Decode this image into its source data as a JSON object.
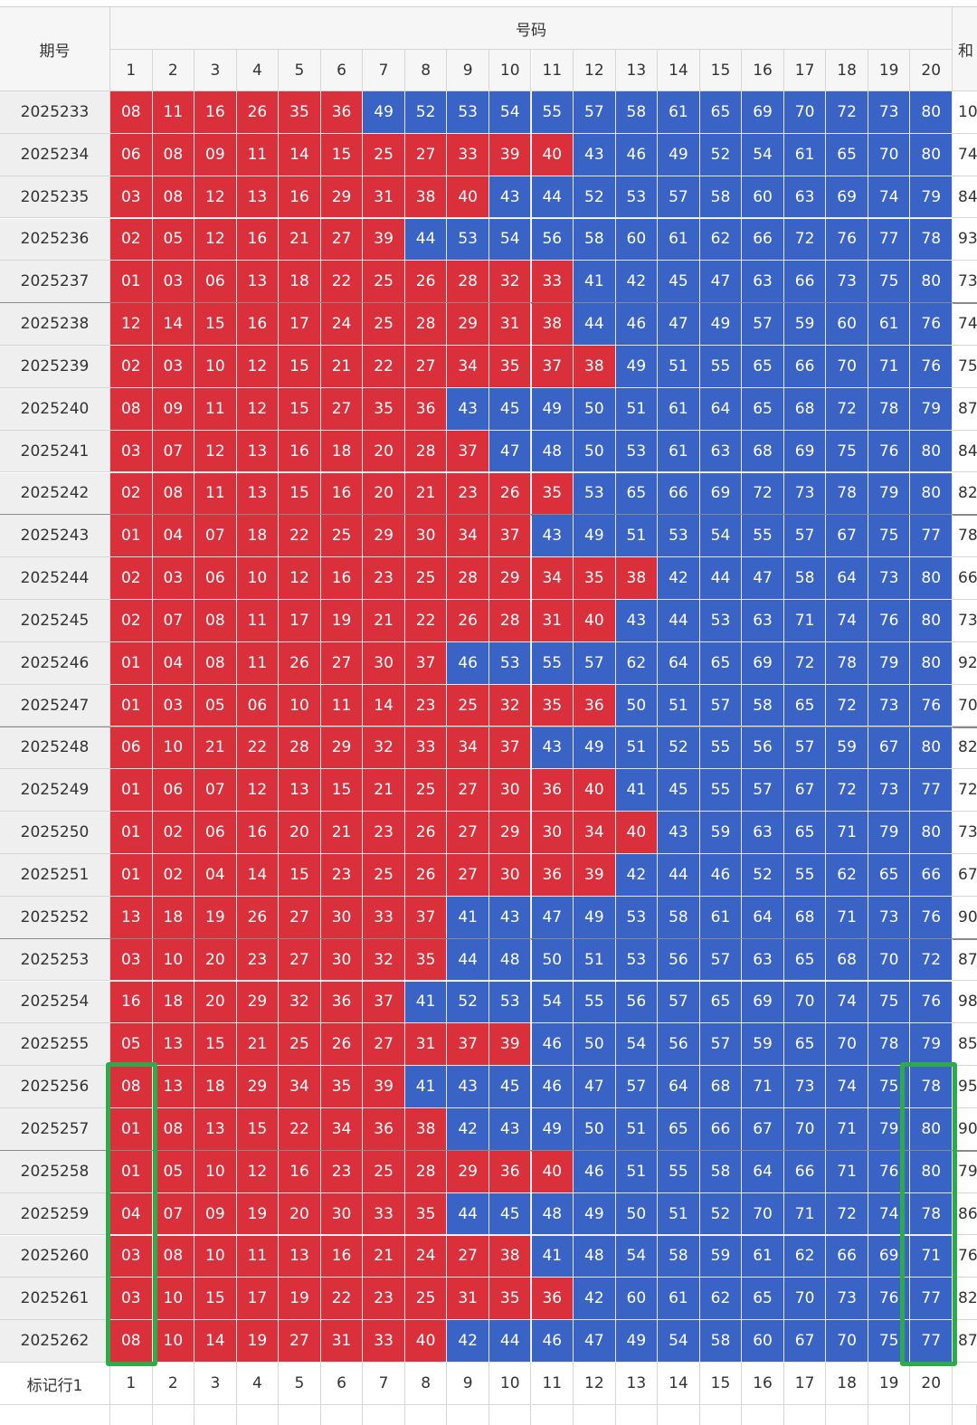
{
  "table": {
    "header": {
      "period": "期号",
      "numbers": "号码",
      "sum": "和",
      "columns": [
        1,
        2,
        3,
        4,
        5,
        6,
        7,
        8,
        9,
        10,
        11,
        12,
        13,
        14,
        15,
        16,
        17,
        18,
        19,
        20
      ]
    },
    "red_max": 40,
    "colors": {
      "low": "#d9303c",
      "high": "#3a63c6"
    },
    "rows": [
      {
        "period": "2025233",
        "numbers": [
          "08",
          "11",
          "16",
          "26",
          "35",
          "36",
          "49",
          "52",
          "53",
          "54",
          "55",
          "57",
          "58",
          "61",
          "65",
          "69",
          "70",
          "72",
          "73",
          "80"
        ],
        "sum": "10"
      },
      {
        "period": "2025234",
        "numbers": [
          "06",
          "08",
          "09",
          "11",
          "14",
          "15",
          "25",
          "27",
          "33",
          "39",
          "40",
          "43",
          "46",
          "49",
          "52",
          "54",
          "61",
          "65",
          "70",
          "80"
        ],
        "sum": "74"
      },
      {
        "period": "2025235",
        "numbers": [
          "03",
          "08",
          "12",
          "13",
          "16",
          "29",
          "31",
          "38",
          "40",
          "43",
          "44",
          "52",
          "53",
          "57",
          "58",
          "60",
          "63",
          "69",
          "74",
          "79"
        ],
        "sum": "84"
      },
      {
        "period": "2025236",
        "numbers": [
          "02",
          "05",
          "12",
          "16",
          "21",
          "27",
          "39",
          "44",
          "53",
          "54",
          "56",
          "58",
          "60",
          "61",
          "62",
          "66",
          "72",
          "76",
          "77",
          "78"
        ],
        "sum": "93"
      },
      {
        "period": "2025237",
        "numbers": [
          "01",
          "03",
          "06",
          "13",
          "18",
          "22",
          "25",
          "26",
          "28",
          "32",
          "33",
          "41",
          "42",
          "45",
          "47",
          "63",
          "66",
          "73",
          "75",
          "80"
        ],
        "sum": "73"
      },
      {
        "period": "2025238",
        "numbers": [
          "12",
          "14",
          "15",
          "16",
          "17",
          "24",
          "25",
          "28",
          "29",
          "31",
          "38",
          "44",
          "46",
          "47",
          "49",
          "57",
          "59",
          "60",
          "61",
          "76"
        ],
        "sum": "74"
      },
      {
        "period": "2025239",
        "numbers": [
          "02",
          "03",
          "10",
          "12",
          "15",
          "21",
          "22",
          "27",
          "34",
          "35",
          "37",
          "38",
          "49",
          "51",
          "55",
          "65",
          "66",
          "70",
          "71",
          "76"
        ],
        "sum": "75"
      },
      {
        "period": "2025240",
        "numbers": [
          "08",
          "09",
          "11",
          "12",
          "15",
          "27",
          "35",
          "36",
          "43",
          "45",
          "49",
          "50",
          "51",
          "61",
          "64",
          "65",
          "68",
          "72",
          "78",
          "79"
        ],
        "sum": "87"
      },
      {
        "period": "2025241",
        "numbers": [
          "03",
          "07",
          "12",
          "13",
          "16",
          "18",
          "20",
          "28",
          "37",
          "47",
          "48",
          "50",
          "53",
          "61",
          "63",
          "68",
          "69",
          "75",
          "76",
          "80"
        ],
        "sum": "84"
      },
      {
        "period": "2025242",
        "numbers": [
          "02",
          "08",
          "11",
          "13",
          "15",
          "16",
          "20",
          "21",
          "23",
          "26",
          "35",
          "53",
          "65",
          "66",
          "69",
          "72",
          "73",
          "78",
          "79",
          "80"
        ],
        "sum": "82"
      },
      {
        "period": "2025243",
        "numbers": [
          "01",
          "04",
          "07",
          "18",
          "22",
          "25",
          "29",
          "30",
          "34",
          "37",
          "43",
          "49",
          "51",
          "53",
          "54",
          "55",
          "57",
          "67",
          "75",
          "77"
        ],
        "sum": "78"
      },
      {
        "period": "2025244",
        "numbers": [
          "02",
          "03",
          "06",
          "10",
          "12",
          "16",
          "23",
          "25",
          "28",
          "29",
          "34",
          "35",
          "38",
          "42",
          "44",
          "47",
          "58",
          "64",
          "73",
          "80"
        ],
        "sum": "66"
      },
      {
        "period": "2025245",
        "numbers": [
          "02",
          "07",
          "08",
          "11",
          "17",
          "19",
          "21",
          "22",
          "26",
          "28",
          "31",
          "40",
          "43",
          "44",
          "53",
          "63",
          "71",
          "74",
          "76",
          "80"
        ],
        "sum": "73"
      },
      {
        "period": "2025246",
        "numbers": [
          "01",
          "04",
          "08",
          "11",
          "26",
          "27",
          "30",
          "37",
          "46",
          "53",
          "55",
          "57",
          "62",
          "64",
          "65",
          "69",
          "72",
          "78",
          "79",
          "80"
        ],
        "sum": "92"
      },
      {
        "period": "2025247",
        "numbers": [
          "01",
          "03",
          "05",
          "06",
          "10",
          "11",
          "14",
          "23",
          "25",
          "32",
          "35",
          "36",
          "50",
          "51",
          "57",
          "58",
          "65",
          "72",
          "73",
          "76"
        ],
        "sum": "70"
      },
      {
        "period": "2025248",
        "numbers": [
          "06",
          "10",
          "21",
          "22",
          "28",
          "29",
          "32",
          "33",
          "34",
          "37",
          "43",
          "49",
          "51",
          "52",
          "55",
          "56",
          "57",
          "59",
          "67",
          "80"
        ],
        "sum": "82"
      },
      {
        "period": "2025249",
        "numbers": [
          "01",
          "06",
          "07",
          "12",
          "13",
          "15",
          "21",
          "25",
          "27",
          "30",
          "36",
          "40",
          "41",
          "45",
          "55",
          "57",
          "67",
          "72",
          "73",
          "77"
        ],
        "sum": "72"
      },
      {
        "period": "2025250",
        "numbers": [
          "01",
          "02",
          "06",
          "16",
          "20",
          "21",
          "23",
          "26",
          "27",
          "29",
          "30",
          "34",
          "40",
          "43",
          "59",
          "63",
          "65",
          "71",
          "79",
          "80"
        ],
        "sum": "73"
      },
      {
        "period": "2025251",
        "numbers": [
          "01",
          "02",
          "04",
          "14",
          "15",
          "23",
          "25",
          "26",
          "27",
          "30",
          "36",
          "39",
          "42",
          "44",
          "46",
          "52",
          "55",
          "62",
          "65",
          "66"
        ],
        "sum": "67"
      },
      {
        "period": "2025252",
        "numbers": [
          "13",
          "18",
          "19",
          "26",
          "27",
          "30",
          "33",
          "37",
          "41",
          "43",
          "47",
          "49",
          "53",
          "58",
          "61",
          "64",
          "68",
          "71",
          "73",
          "76"
        ],
        "sum": "90"
      },
      {
        "period": "2025253",
        "numbers": [
          "03",
          "10",
          "20",
          "23",
          "27",
          "30",
          "32",
          "35",
          "44",
          "48",
          "50",
          "51",
          "53",
          "56",
          "57",
          "63",
          "65",
          "68",
          "70",
          "72"
        ],
        "sum": "87"
      },
      {
        "period": "2025254",
        "numbers": [
          "16",
          "18",
          "20",
          "29",
          "32",
          "36",
          "37",
          "41",
          "52",
          "53",
          "54",
          "55",
          "56",
          "57",
          "65",
          "69",
          "70",
          "74",
          "75",
          "76"
        ],
        "sum": "98"
      },
      {
        "period": "2025255",
        "numbers": [
          "05",
          "13",
          "15",
          "21",
          "25",
          "26",
          "27",
          "31",
          "37",
          "39",
          "46",
          "50",
          "54",
          "56",
          "57",
          "59",
          "65",
          "70",
          "78",
          "79"
        ],
        "sum": "85"
      },
      {
        "period": "2025256",
        "numbers": [
          "08",
          "13",
          "18",
          "29",
          "34",
          "35",
          "39",
          "41",
          "43",
          "45",
          "46",
          "47",
          "57",
          "64",
          "68",
          "71",
          "73",
          "74",
          "75",
          "78"
        ],
        "sum": "95"
      },
      {
        "period": "2025257",
        "numbers": [
          "01",
          "08",
          "13",
          "15",
          "22",
          "34",
          "36",
          "38",
          "42",
          "43",
          "49",
          "50",
          "51",
          "65",
          "66",
          "67",
          "70",
          "71",
          "79",
          "80"
        ],
        "sum": "90"
      },
      {
        "period": "2025258",
        "numbers": [
          "01",
          "05",
          "10",
          "12",
          "16",
          "23",
          "25",
          "28",
          "29",
          "36",
          "40",
          "46",
          "51",
          "55",
          "58",
          "64",
          "66",
          "71",
          "76",
          "80"
        ],
        "sum": "79"
      },
      {
        "period": "2025259",
        "numbers": [
          "04",
          "07",
          "09",
          "19",
          "20",
          "30",
          "33",
          "35",
          "44",
          "45",
          "48",
          "49",
          "50",
          "51",
          "52",
          "70",
          "71",
          "72",
          "74",
          "78"
        ],
        "sum": "86"
      },
      {
        "period": "2025260",
        "numbers": [
          "03",
          "08",
          "10",
          "11",
          "13",
          "16",
          "21",
          "24",
          "27",
          "38",
          "41",
          "48",
          "54",
          "58",
          "59",
          "61",
          "62",
          "66",
          "69",
          "71"
        ],
        "sum": "76"
      },
      {
        "period": "2025261",
        "numbers": [
          "03",
          "10",
          "15",
          "17",
          "19",
          "22",
          "23",
          "25",
          "31",
          "35",
          "36",
          "42",
          "60",
          "61",
          "62",
          "65",
          "70",
          "73",
          "76",
          "77"
        ],
        "sum": "82"
      },
      {
        "period": "2025262",
        "numbers": [
          "08",
          "10",
          "14",
          "19",
          "27",
          "31",
          "33",
          "40",
          "42",
          "44",
          "46",
          "47",
          "49",
          "54",
          "58",
          "60",
          "67",
          "70",
          "75",
          "77"
        ],
        "sum": "87"
      }
    ],
    "footer": {
      "label": "标记行1",
      "cells": [
        1,
        2,
        3,
        4,
        5,
        6,
        7,
        8,
        9,
        10,
        11,
        12,
        13,
        14,
        15,
        16,
        17,
        18,
        19,
        20
      ]
    }
  }
}
